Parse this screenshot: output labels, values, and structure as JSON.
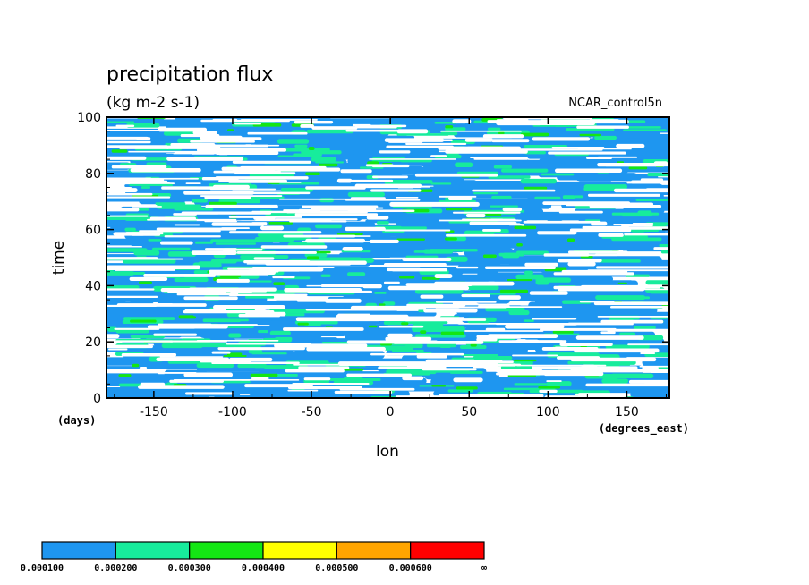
{
  "chart_data": {
    "type": "heatmap",
    "title": "precipitation flux",
    "units": "(kg m-2 s-1)",
    "experiment": "NCAR_control5n",
    "xlabel": "lon",
    "xunits": "(degrees_east)",
    "ylabel": "time",
    "yunits": "(days)",
    "xlim": [
      -180,
      177
    ],
    "ylim": [
      0,
      100
    ],
    "xticks": [
      -150,
      -100,
      -50,
      0,
      50,
      100,
      150
    ],
    "yticks": [
      0,
      20,
      40,
      60,
      80,
      100
    ],
    "xtick_labels": [
      "-150",
      "-100",
      "-50",
      "0",
      "50",
      "100",
      "150"
    ],
    "ytick_labels": [
      "0",
      "20",
      "40",
      "60",
      "80",
      "100"
    ],
    "colorbar": {
      "levels": [
        0.0001,
        0.0002,
        0.0003,
        0.0004,
        0.0005,
        0.0006
      ],
      "labels": [
        "0.000100",
        "0.000200",
        "0.000300",
        "0.000400",
        "0.000500",
        "0.000600",
        "∞"
      ],
      "colors": [
        "#1e96f0",
        "#17ec9c",
        "#14e614",
        "#ffff00",
        "#ffa500",
        "#ff0000"
      ]
    }
  }
}
